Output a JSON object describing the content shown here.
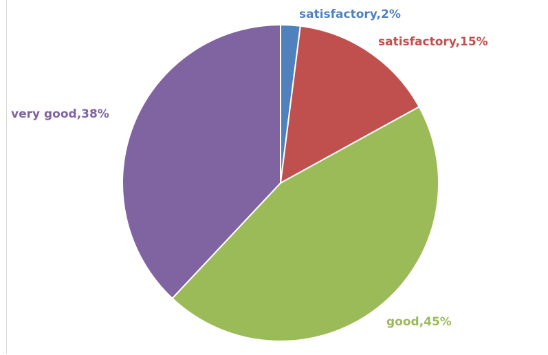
{
  "chart_data": {
    "type": "pie",
    "title": "",
    "start_angle_deg": 0,
    "direction": "clockwise",
    "categories": [
      "satisfactory",
      "satisfactory",
      "good",
      "very good"
    ],
    "values": [
      2,
      15,
      45,
      38
    ],
    "unit": "%",
    "colors": [
      "#4f81bd",
      "#c0504d",
      "#9bbb59",
      "#8064a2"
    ],
    "labels": [
      "satisfactory,2%",
      "satisfactory,15%",
      "good,45%",
      "very good,38%"
    ],
    "legend": "none",
    "label_position": "outside"
  }
}
